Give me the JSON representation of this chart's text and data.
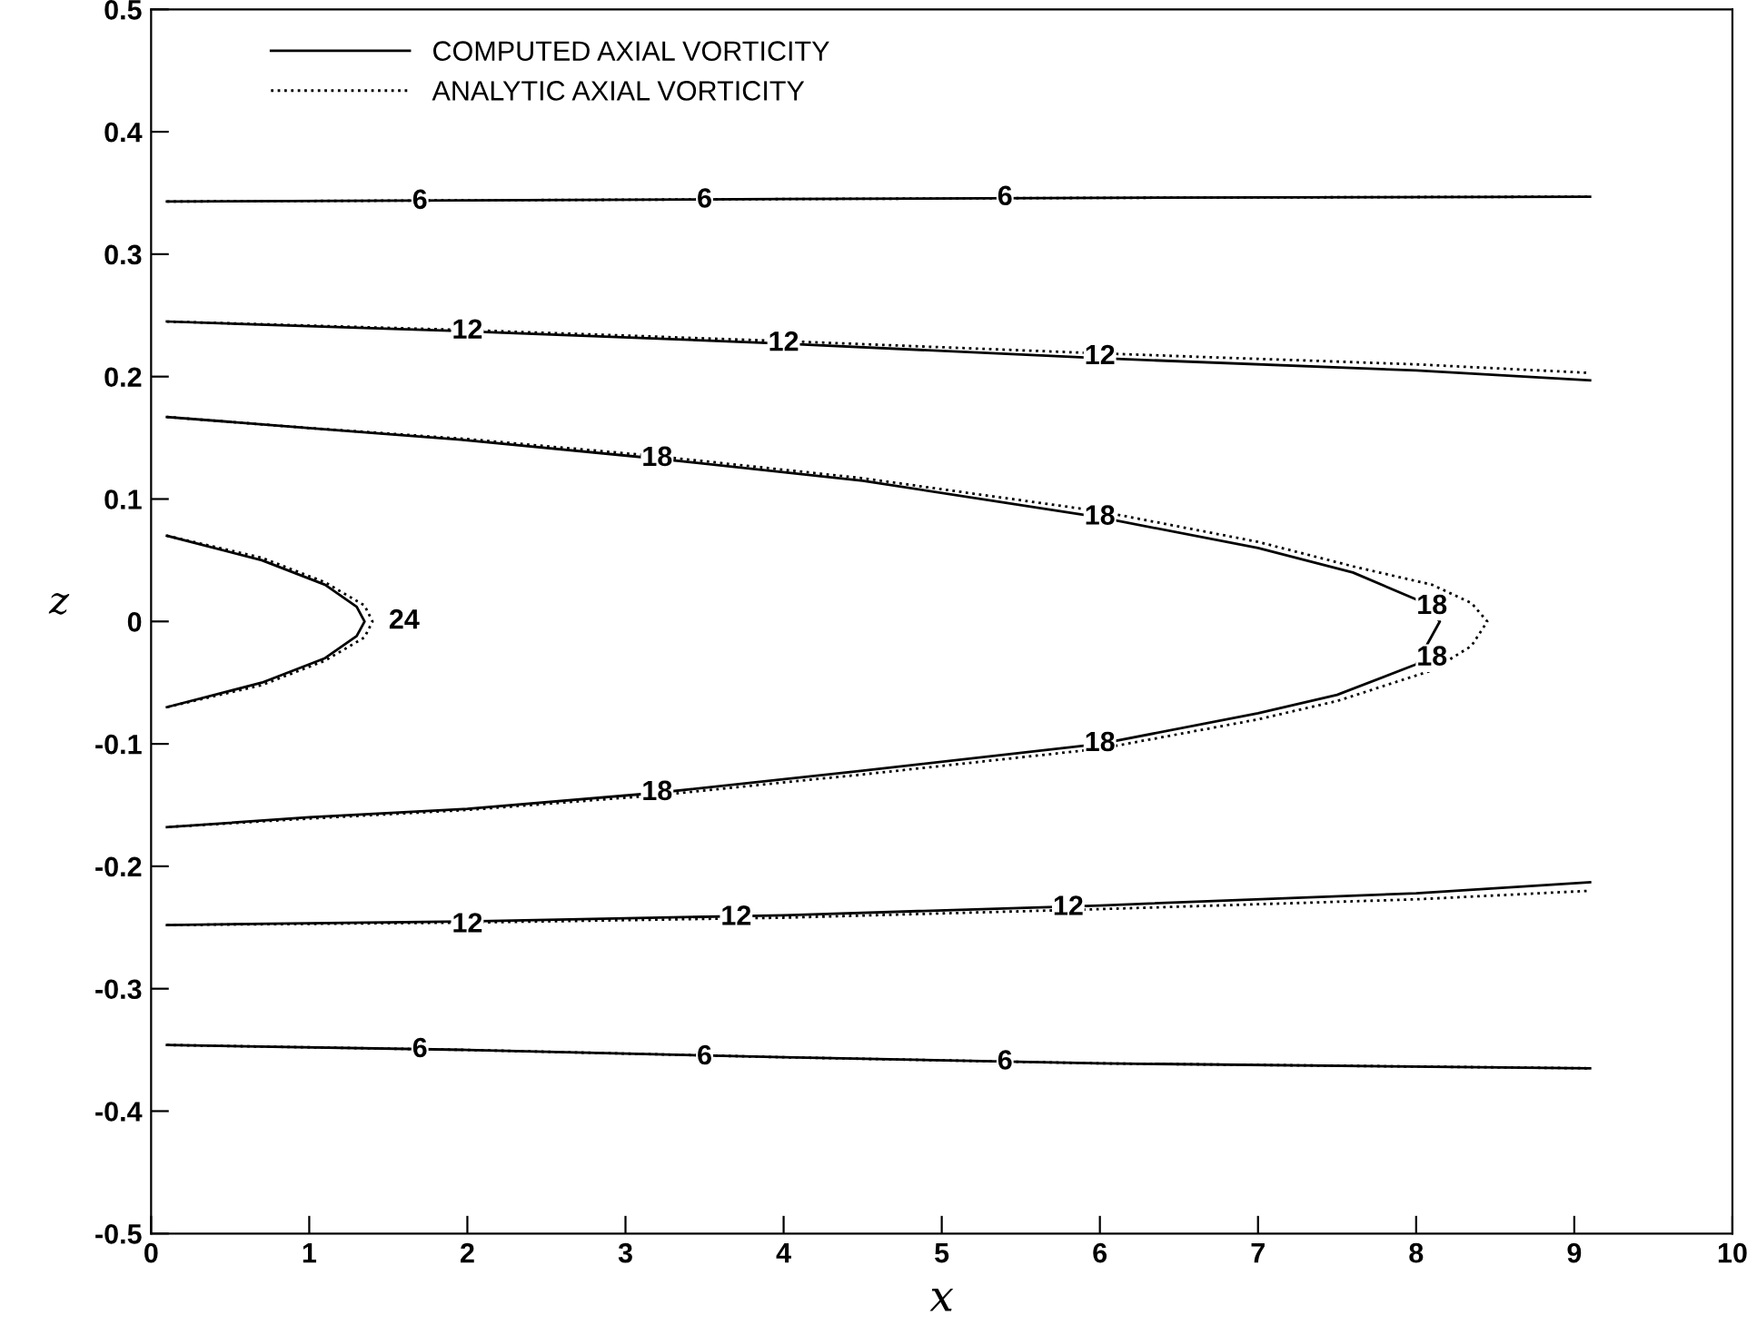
{
  "chart_data": {
    "type": "line",
    "xlabel": "x",
    "ylabel": "z",
    "xlim": [
      0,
      10
    ],
    "ylim": [
      -0.5,
      0.5
    ],
    "xticks": [
      0,
      1,
      2,
      3,
      4,
      5,
      6,
      7,
      8,
      9,
      10
    ],
    "yticks": [
      -0.5,
      -0.4,
      -0.3,
      -0.2,
      -0.1,
      0,
      0.1,
      0.2,
      0.3,
      0.4,
      0.5
    ],
    "grid": false,
    "legend": "top left",
    "series": [
      {
        "name": "COMPUTED AXIAL VORTICITY",
        "color": "#000000",
        "line_style": "solid",
        "x": [
          0.1,
          2,
          4,
          6,
          9.1
        ],
        "values": [
          0.343,
          0.344,
          0.345,
          0.346,
          0.347
        ]
      },
      {
        "color": "#000000",
        "line_style": "solid",
        "x": [
          0.1,
          2,
          4,
          6,
          8,
          9.1
        ],
        "values": [
          0.245,
          0.237,
          0.227,
          0.215,
          0.205,
          0.197
        ]
      },
      {
        "color": "#000000",
        "line_style": "solid",
        "x": [
          0.1,
          1,
          2,
          3.2,
          4.5,
          6,
          7,
          7.6,
          8.0,
          8.15,
          8.0,
          7.5,
          7,
          6,
          4.5,
          3.2,
          2,
          1,
          0.1
        ],
        "values": [
          0.167,
          0.158,
          0.148,
          0.133,
          0.115,
          0.085,
          0.06,
          0.04,
          0.018,
          0,
          -0.035,
          -0.06,
          -0.075,
          -0.1,
          -0.122,
          -0.14,
          -0.153,
          -0.16,
          -0.168
        ]
      },
      {
        "color": "#000000",
        "line_style": "solid",
        "x": [
          0.1,
          0.7,
          1.1,
          1.3,
          1.35,
          1.3,
          1.1,
          0.7,
          0.1
        ],
        "values": [
          0.07,
          0.05,
          0.03,
          0.012,
          0,
          -0.012,
          -0.03,
          -0.05,
          -0.07
        ]
      },
      {
        "color": "#000000",
        "line_style": "solid",
        "x": [
          0.1,
          2,
          4,
          6,
          8,
          9.1
        ],
        "values": [
          -0.248,
          -0.245,
          -0.24,
          -0.232,
          -0.222,
          -0.213
        ]
      },
      {
        "color": "#000000",
        "line_style": "solid",
        "x": [
          0.1,
          2,
          4,
          6,
          9.1
        ],
        "values": [
          -0.346,
          -0.35,
          -0.356,
          -0.361,
          -0.365
        ]
      },
      {
        "name": "ANALYTIC AXIAL VORTICITY",
        "color": "#000000",
        "line_style": "dotted",
        "x": [
          0.1,
          2,
          4,
          6,
          9.1
        ],
        "values": [
          0.343,
          0.344,
          0.345,
          0.346,
          0.347
        ]
      },
      {
        "color": "#000000",
        "line_style": "dotted",
        "x": [
          0.1,
          2,
          4,
          6,
          8,
          9.1
        ],
        "values": [
          0.245,
          0.238,
          0.229,
          0.219,
          0.21,
          0.203
        ]
      },
      {
        "color": "#000000",
        "line_style": "dotted",
        "x": [
          0.1,
          1,
          2,
          3.2,
          4.5,
          6,
          7,
          7.6,
          8.1,
          8.35,
          8.45,
          8.35,
          8.1,
          7.5,
          7,
          6,
          4.5,
          3.2,
          2,
          1,
          0.1
        ],
        "values": [
          0.167,
          0.158,
          0.149,
          0.135,
          0.117,
          0.09,
          0.065,
          0.045,
          0.03,
          0.015,
          0,
          -0.02,
          -0.04,
          -0.065,
          -0.08,
          -0.104,
          -0.125,
          -0.142,
          -0.154,
          -0.161,
          -0.168
        ]
      },
      {
        "color": "#000000",
        "line_style": "dotted",
        "x": [
          0.1,
          0.7,
          1.1,
          1.35,
          1.4,
          1.35,
          1.1,
          0.7,
          0.1
        ],
        "values": [
          0.07,
          0.052,
          0.032,
          0.013,
          0,
          -0.013,
          -0.032,
          -0.052,
          -0.07
        ]
      },
      {
        "color": "#000000",
        "line_style": "dotted",
        "x": [
          0.1,
          2,
          4,
          6,
          8,
          9.1
        ],
        "values": [
          -0.248,
          -0.246,
          -0.242,
          -0.235,
          -0.227,
          -0.22
        ]
      },
      {
        "color": "#000000",
        "line_style": "dotted",
        "x": [
          0.1,
          2,
          4,
          6,
          9.1
        ],
        "values": [
          -0.346,
          -0.35,
          -0.356,
          -0.361,
          -0.365
        ]
      }
    ],
    "annotations": [
      {
        "text": "6",
        "x": 1.7,
        "y": 0.343
      },
      {
        "text": "6",
        "x": 3.5,
        "y": 0.344
      },
      {
        "text": "6",
        "x": 5.4,
        "y": 0.346
      },
      {
        "text": "12",
        "x": 2.0,
        "y": 0.237
      },
      {
        "text": "12",
        "x": 4.0,
        "y": 0.227
      },
      {
        "text": "12",
        "x": 6.0,
        "y": 0.216
      },
      {
        "text": "18",
        "x": 3.2,
        "y": 0.133
      },
      {
        "text": "18",
        "x": 6.0,
        "y": 0.085
      },
      {
        "text": "18",
        "x": 8.1,
        "y": 0.012
      },
      {
        "text": "18",
        "x": 8.1,
        "y": -0.03
      },
      {
        "text": "18",
        "x": 6.0,
        "y": -0.1
      },
      {
        "text": "18",
        "x": 3.2,
        "y": -0.14
      },
      {
        "text": "24",
        "x": 1.6,
        "y": 0
      },
      {
        "text": "12",
        "x": 2.0,
        "y": -0.248
      },
      {
        "text": "12",
        "x": 3.7,
        "y": -0.242
      },
      {
        "text": "12",
        "x": 5.8,
        "y": -0.234
      },
      {
        "text": "6",
        "x": 1.7,
        "y": -0.35
      },
      {
        "text": "6",
        "x": 3.5,
        "y": -0.356
      },
      {
        "text": "6",
        "x": 5.4,
        "y": -0.36
      }
    ]
  }
}
